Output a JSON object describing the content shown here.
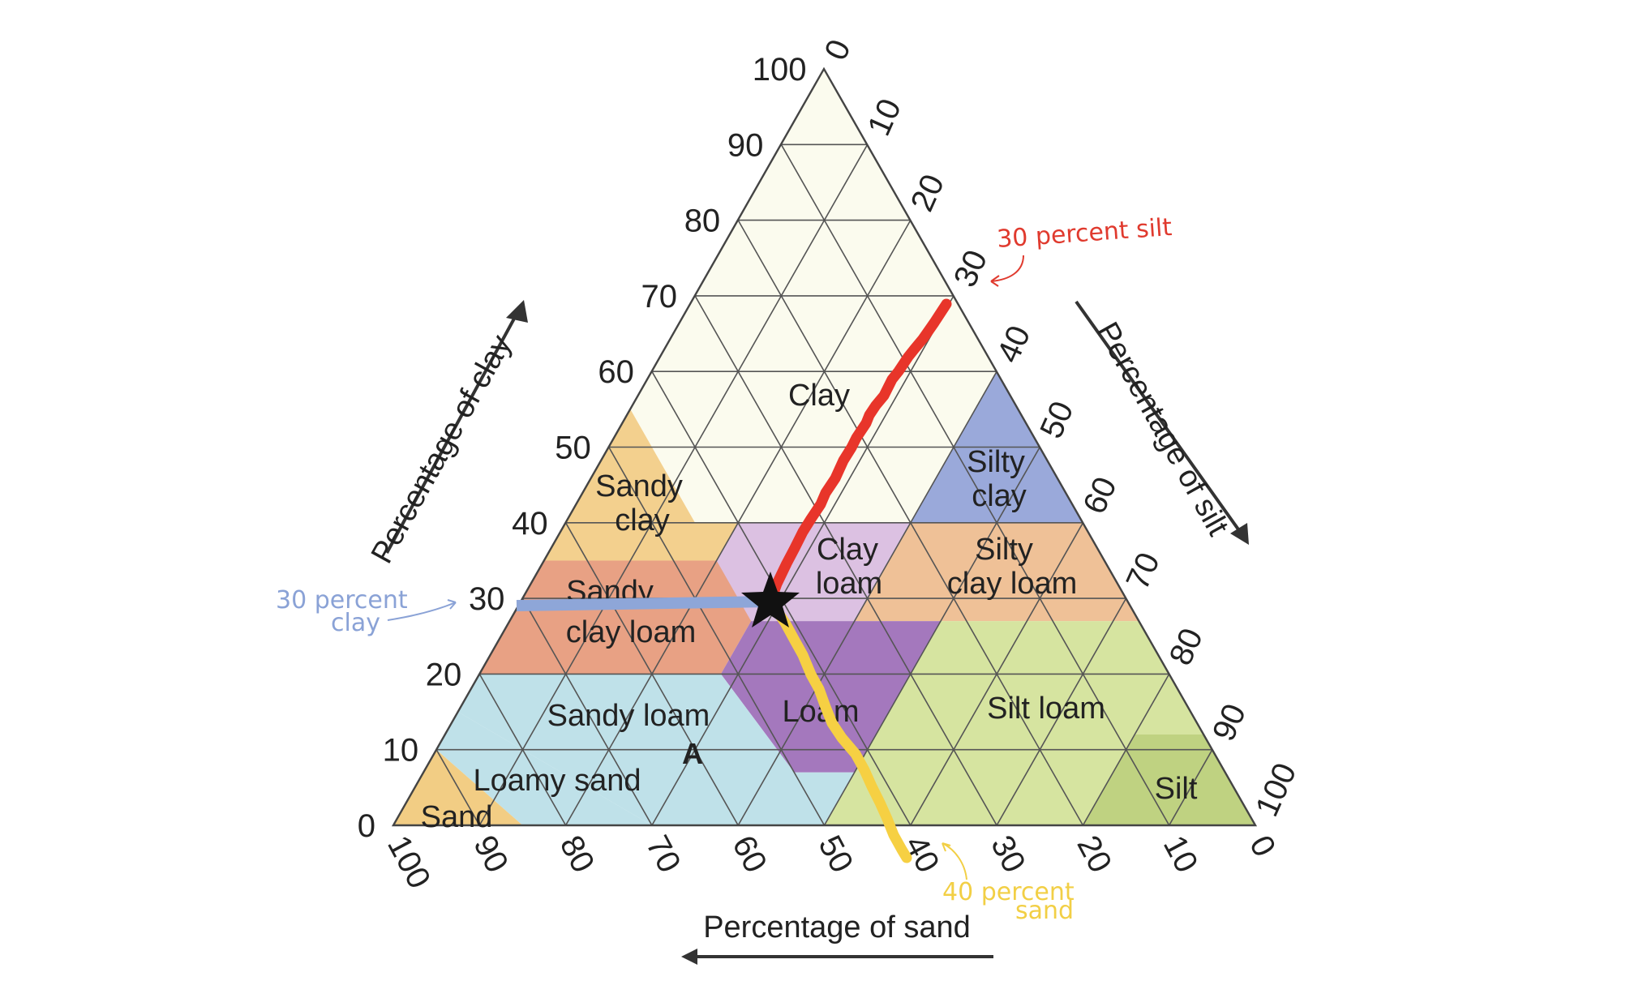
{
  "axes": {
    "clay": {
      "title": "Percentage of clay",
      "ticks": [
        "0",
        "10",
        "20",
        "30",
        "40",
        "50",
        "60",
        "70",
        "80",
        "90",
        "100"
      ]
    },
    "silt": {
      "title": "Percentage of silt",
      "ticks": [
        "0",
        "10",
        "20",
        "30",
        "40",
        "50",
        "60",
        "70",
        "80",
        "90",
        "100"
      ]
    },
    "sand": {
      "title": "Percentage of sand",
      "ticks": [
        "100",
        "90",
        "80",
        "70",
        "60",
        "50",
        "40",
        "30",
        "20",
        "10",
        "0"
      ]
    }
  },
  "regions": [
    {
      "key": "clay",
      "label": "Clay",
      "color": "#fbfbee"
    },
    {
      "key": "sandy_clay",
      "label": "Sandy clay",
      "color": "#f3d08e"
    },
    {
      "key": "silty_clay",
      "label": "Silty clay",
      "color": "#9aa9da"
    },
    {
      "key": "clay_loam",
      "label": "Clay loam",
      "color": "#dcc1e2"
    },
    {
      "key": "silty_clay_loam",
      "label": "Silty clay loam",
      "color": "#efc197"
    },
    {
      "key": "sandy_clay_loam",
      "label": "Sandy clay loam",
      "color": "#e8a184"
    },
    {
      "key": "loam",
      "label": "Loam",
      "color": "#a478bd"
    },
    {
      "key": "sandy_loam",
      "label": "Sandy loam",
      "color": "#bfe1e9"
    },
    {
      "key": "silt_loam",
      "label": "Silt loam",
      "color": "#d6e4a0"
    },
    {
      "key": "loamy_sand",
      "label": "Loamy sand",
      "color": "#bfe1e9"
    },
    {
      "key": "sand",
      "label": "Sand",
      "color": "#f2cd84"
    },
    {
      "key": "silt",
      "label": "Silt",
      "color": "#bfd281"
    }
  ],
  "point_label": "A",
  "sample": {
    "clay": 30,
    "silt": 30,
    "sand": 40
  },
  "annotations": {
    "silt": {
      "text": "30 percent silt",
      "color": "#e03a2e"
    },
    "clay": {
      "line1": "30 percent",
      "line2": "clay",
      "color": "#8aa2d6"
    },
    "sand": {
      "line1": "40 percent",
      "line2": "sand",
      "color": "#f2cf45"
    }
  },
  "colors": {
    "grid": "#555555",
    "silt_line": "#e8352a",
    "clay_line": "#8ea6d8",
    "sand_line": "#f6d043",
    "star": "#111111"
  }
}
